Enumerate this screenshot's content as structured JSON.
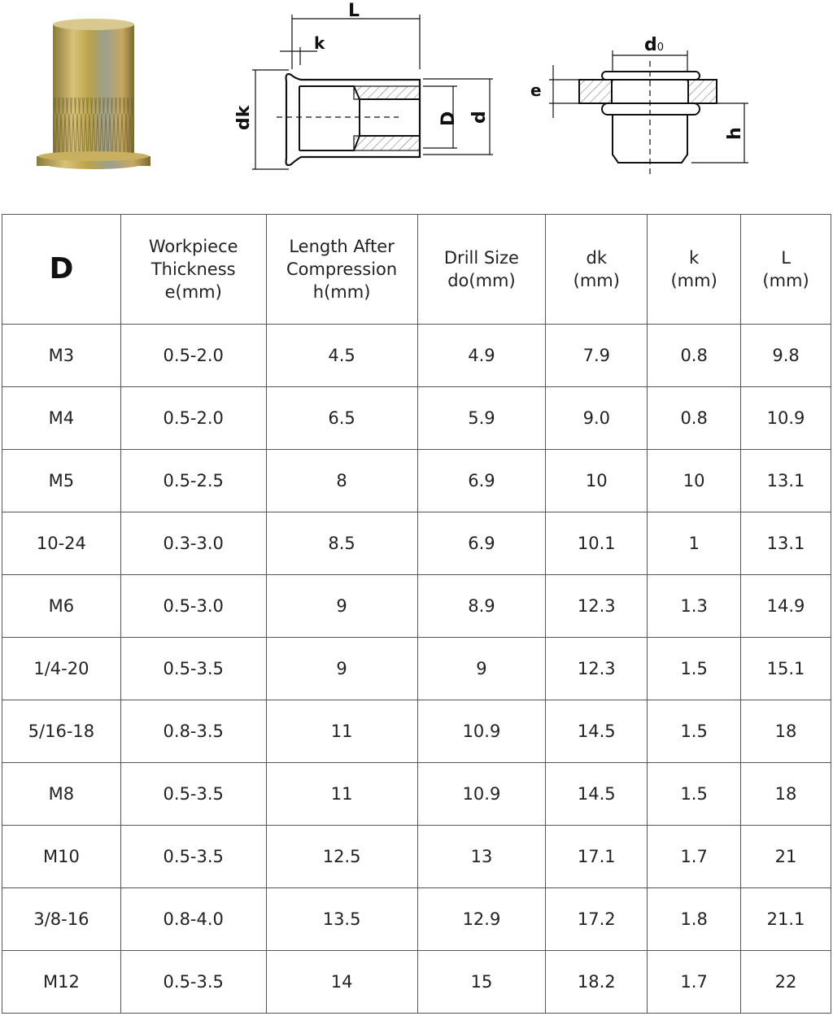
{
  "diagram": {
    "left_labels": {
      "L": "L",
      "k": "k",
      "dk": "dk",
      "D": "D",
      "d": "d"
    },
    "right_labels": {
      "d0_main": "d",
      "d0_sub": "0",
      "e": "e",
      "h": "h"
    }
  },
  "table": {
    "headers": [
      {
        "lines": [
          "D"
        ]
      },
      {
        "lines": [
          "Workpiece",
          "Thickness",
          "e(mm)"
        ]
      },
      {
        "lines": [
          "Length After",
          "Compression",
          "h(mm)"
        ]
      },
      {
        "lines": [
          "Drill Size",
          "do(mm)"
        ]
      },
      {
        "lines": [
          "dk",
          "(mm)"
        ]
      },
      {
        "lines": [
          "k",
          "(mm)"
        ]
      },
      {
        "lines": [
          "L",
          "(mm)"
        ]
      }
    ],
    "rows": [
      [
        "M3",
        "0.5-2.0",
        "4.5",
        "4.9",
        "7.9",
        "0.8",
        "9.8"
      ],
      [
        "M4",
        "0.5-2.0",
        "6.5",
        "5.9",
        "9.0",
        "0.8",
        "10.9"
      ],
      [
        "M5",
        "0.5-2.5",
        "8",
        "6.9",
        "10",
        "10",
        "13.1"
      ],
      [
        "10-24",
        "0.3-3.0",
        "8.5",
        "6.9",
        "10.1",
        "1",
        "13.1"
      ],
      [
        "M6",
        "0.5-3.0",
        "9",
        "8.9",
        "12.3",
        "1.3",
        "14.9"
      ],
      [
        "1/4-20",
        "0.5-3.5",
        "9",
        "9",
        "12.3",
        "1.5",
        "15.1"
      ],
      [
        "5/16-18",
        "0.8-3.5",
        "11",
        "10.9",
        "14.5",
        "1.5",
        "18"
      ],
      [
        "M8",
        "0.5-3.5",
        "11",
        "10.9",
        "14.5",
        "1.5",
        "18"
      ],
      [
        "M10",
        "0.5-3.5",
        "12.5",
        "13",
        "17.1",
        "1.7",
        "21"
      ],
      [
        "3/8-16",
        "0.8-4.0",
        "13.5",
        "12.9",
        "17.2",
        "1.8",
        "21.1"
      ],
      [
        "M12",
        "0.5-3.5",
        "14",
        "15",
        "18.2",
        "1.7",
        "22"
      ]
    ]
  }
}
